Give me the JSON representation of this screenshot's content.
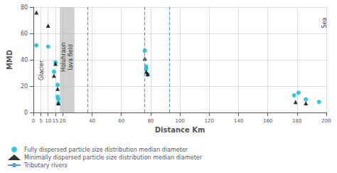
{
  "chart_data": {
    "type": "scatter",
    "title": "",
    "xlabel": "Distance Km",
    "ylabel": "MMD",
    "xlim": [
      0,
      200
    ],
    "ylim": [
      0,
      80
    ],
    "xticks": [
      0,
      5,
      10,
      15,
      20,
      40,
      60,
      80,
      100,
      120,
      140,
      160,
      180,
      200
    ],
    "yticks": [
      0,
      20,
      40,
      60,
      80
    ],
    "grid": true,
    "series": [
      {
        "name": "Fully dispersed particle size distribution median diameter",
        "color": "#00bcd4",
        "marker": "circle",
        "x": [
          2,
          10,
          14,
          15,
          16.5,
          16.5,
          17,
          17,
          76,
          77,
          77,
          78,
          178,
          181,
          186,
          195
        ],
        "y": [
          51,
          50,
          31,
          38,
          21,
          12,
          10,
          7,
          47,
          35,
          33,
          29,
          13,
          15,
          10,
          8
        ]
      },
      {
        "name": "Minimally dispersed particle size distribution median diameter",
        "color": "black",
        "marker": "triangle",
        "x": [
          2,
          10,
          14,
          15,
          16.5,
          17,
          76,
          77,
          78,
          179,
          186
        ],
        "y": [
          76,
          66,
          28,
          37,
          18,
          7,
          41,
          31,
          29,
          8,
          7
        ]
      }
    ],
    "vertical_lines": {
      "name": "Tributary rivers",
      "color": "#5b9bd5",
      "line_style": "dashed",
      "x": [
        37,
        76,
        93
      ]
    },
    "shaded_regions": [
      {
        "xmin": 18,
        "xmax": 28,
        "color": "#c0c0c0"
      }
    ],
    "annotations": [
      {
        "text": "Holuhraun\nlava field",
        "x": 23,
        "y": 42
      },
      {
        "text": "Glacier",
        "x": 5.5,
        "y": 32
      },
      {
        "text": "Sea",
        "x": 199,
        "y": 68
      }
    ]
  }
}
